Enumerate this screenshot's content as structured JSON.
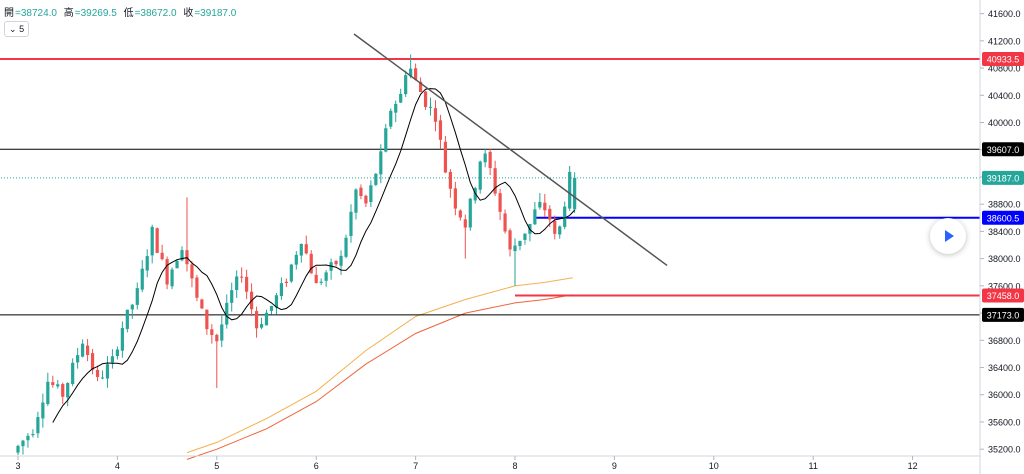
{
  "legend": {
    "open_label": "開",
    "open_value": "=38724.0",
    "high_label": "高",
    "high_value": "=39269.5",
    "low_label": "低",
    "low_value": "=38672.0",
    "close_label": "收",
    "close_value": "=39187.0"
  },
  "interval_button": {
    "icon": "chevron-down-icon",
    "label": "5"
  },
  "play_button": {
    "icon": "play-icon",
    "color": "#2962ff"
  },
  "colors": {
    "up": "#26a69a",
    "down": "#ef5350",
    "ma_fast": "#000000",
    "ma_mid": "#f5b04e",
    "ma_slow": "#f0643c",
    "red_line": "#f23645",
    "blue_line": "#0000ff",
    "trendline": "#555555",
    "black_line": "#000000"
  },
  "chart_data": {
    "type": "candlestick",
    "x_ticks": [
      "3",
      "4",
      "5",
      "6",
      "7",
      "8",
      "9",
      "10",
      "11",
      "12"
    ],
    "y_ticks": [
      "35200.0",
      "35600.0",
      "36000.0",
      "36400.0",
      "36800.0",
      "37200.0",
      "37600.0",
      "38000.0",
      "38400.0",
      "38800.0",
      "39200.0",
      "39600.0",
      "40000.0",
      "40400.0",
      "40800.0",
      "41200.0",
      "41600.0"
    ],
    "ylim": [
      35100,
      41800
    ],
    "xlim": [
      3.0,
      13.0
    ],
    "grid": false,
    "price_labels": [
      {
        "text": "40933.5",
        "value": 40933.5,
        "color": "#f23645"
      },
      {
        "text": "39607.0",
        "value": 39607.0,
        "color": "#000000"
      },
      {
        "text": "39187.0",
        "value": 39187.0,
        "color": "#26a69a"
      },
      {
        "text": "38600.5",
        "value": 38600.5,
        "color": "#0000ff"
      },
      {
        "text": "37458.0",
        "value": 37458.0,
        "color": "#f23645"
      },
      {
        "text": "37173.0",
        "value": 37173.0,
        "color": "#000000"
      }
    ],
    "horizontal_lines": [
      {
        "value": 40933.5,
        "from": 3.0,
        "color": "#f23645",
        "width": 2
      },
      {
        "value": 39607.0,
        "from": 3.0,
        "color": "#000000",
        "width": 1
      },
      {
        "value": 39187.0,
        "from": 3.0,
        "color": "#26a69a",
        "width": 1,
        "dotted": true
      },
      {
        "value": 38600.5,
        "from": 8.2,
        "color": "#0000ff",
        "width": 2
      },
      {
        "value": 37458.0,
        "from": 8.0,
        "color": "#f23645",
        "width": 2
      },
      {
        "value": 37173.0,
        "from": 3.0,
        "color": "#000000",
        "width": 1
      }
    ],
    "trendline": {
      "x1": 6.38,
      "y1": 41300,
      "x2": 9.53,
      "y2": 37900
    },
    "anchor_points": [
      {
        "x": 3.0,
        "y": 35150
      },
      {
        "x": 3.2,
        "y": 35500
      },
      {
        "x": 3.35,
        "y": 36200
      },
      {
        "x": 3.5,
        "y": 36000
      },
      {
        "x": 3.7,
        "y": 36800
      },
      {
        "x": 3.85,
        "y": 36200
      },
      {
        "x": 4.0,
        "y": 36500
      },
      {
        "x": 4.1,
        "y": 37000
      },
      {
        "x": 4.25,
        "y": 37500
      },
      {
        "x": 4.4,
        "y": 38400
      },
      {
        "x": 4.55,
        "y": 37700
      },
      {
        "x": 4.7,
        "y": 38200
      },
      {
        "x": 4.85,
        "y": 37400
      },
      {
        "x": 4.95,
        "y": 37000
      },
      {
        "x": 5.05,
        "y": 36800
      },
      {
        "x": 5.2,
        "y": 37500
      },
      {
        "x": 5.3,
        "y": 37800
      },
      {
        "x": 5.45,
        "y": 37000
      },
      {
        "x": 5.6,
        "y": 37300
      },
      {
        "x": 5.75,
        "y": 37700
      },
      {
        "x": 5.9,
        "y": 38300
      },
      {
        "x": 6.05,
        "y": 37600
      },
      {
        "x": 6.15,
        "y": 37800
      },
      {
        "x": 6.3,
        "y": 38000
      },
      {
        "x": 6.45,
        "y": 39000
      },
      {
        "x": 6.55,
        "y": 38800
      },
      {
        "x": 6.7,
        "y": 39500
      },
      {
        "x": 6.8,
        "y": 40200
      },
      {
        "x": 6.9,
        "y": 40400
      },
      {
        "x": 6.97,
        "y": 40900
      },
      {
        "x": 7.05,
        "y": 40600
      },
      {
        "x": 7.15,
        "y": 40300
      },
      {
        "x": 7.25,
        "y": 40100
      },
      {
        "x": 7.35,
        "y": 39300
      },
      {
        "x": 7.45,
        "y": 38800
      },
      {
        "x": 7.55,
        "y": 38500
      },
      {
        "x": 7.65,
        "y": 39100
      },
      {
        "x": 7.72,
        "y": 39600
      },
      {
        "x": 7.8,
        "y": 39300
      },
      {
        "x": 7.9,
        "y": 38700
      },
      {
        "x": 8.0,
        "y": 38100
      },
      {
        "x": 8.1,
        "y": 38300
      },
      {
        "x": 8.2,
        "y": 38500
      },
      {
        "x": 8.28,
        "y": 38800
      },
      {
        "x": 8.38,
        "y": 38700
      },
      {
        "x": 8.47,
        "y": 38200
      },
      {
        "x": 8.53,
        "y": 38700
      },
      {
        "x": 8.6,
        "y": 39187
      }
    ],
    "extremes": [
      {
        "x": 4.68,
        "high": 38900
      },
      {
        "x": 5.0,
        "low": 36100
      },
      {
        "x": 6.97,
        "high": 41000
      },
      {
        "x": 7.5,
        "low": 38000
      },
      {
        "x": 8.0,
        "low": 37600
      }
    ],
    "ma_mid": [
      {
        "x": 4.7,
        "y": 35150
      },
      {
        "x": 5.0,
        "y": 35300
      },
      {
        "x": 5.5,
        "y": 35650
      },
      {
        "x": 6.0,
        "y": 36050
      },
      {
        "x": 6.5,
        "y": 36650
      },
      {
        "x": 7.0,
        "y": 37150
      },
      {
        "x": 7.5,
        "y": 37400
      },
      {
        "x": 8.0,
        "y": 37600
      },
      {
        "x": 8.3,
        "y": 37650
      },
      {
        "x": 8.58,
        "y": 37720
      }
    ],
    "ma_slow": [
      {
        "x": 4.7,
        "y": 35050
      },
      {
        "x": 5.0,
        "y": 35200
      },
      {
        "x": 5.5,
        "y": 35500
      },
      {
        "x": 6.0,
        "y": 35900
      },
      {
        "x": 6.5,
        "y": 36450
      },
      {
        "x": 7.0,
        "y": 36900
      },
      {
        "x": 7.5,
        "y": 37200
      },
      {
        "x": 8.0,
        "y": 37350
      },
      {
        "x": 8.3,
        "y": 37400
      },
      {
        "x": 8.58,
        "y": 37470
      }
    ]
  }
}
